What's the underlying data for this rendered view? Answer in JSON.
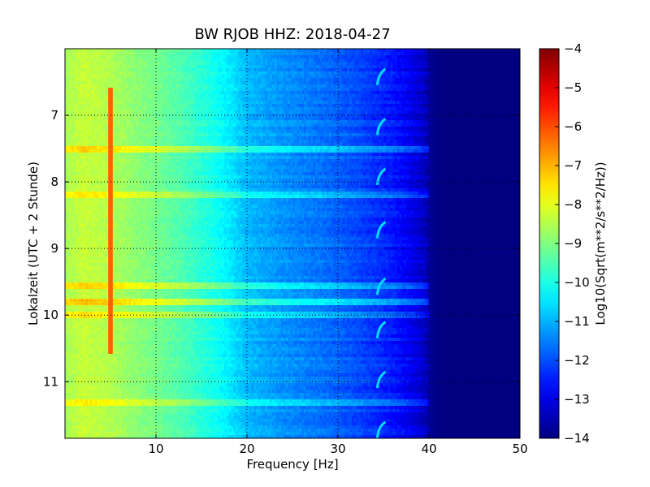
{
  "chart_data": {
    "type": "heatmap",
    "title": "BW RJOB HHZ: 2018-04-27",
    "xlabel": "Frequency [Hz]",
    "ylabel": "Lokalzeit (UTC + 2 Stunde)",
    "xlim": [
      0,
      50
    ],
    "ylim": [
      11.85,
      6.0
    ],
    "x_ticks": [
      10,
      20,
      30,
      40,
      50
    ],
    "x_tick_labels": [
      "10",
      "20",
      "30",
      "40",
      "50"
    ],
    "y_ticks": [
      7,
      8,
      9,
      10,
      11
    ],
    "y_tick_labels": [
      "7",
      "8",
      "9",
      "10",
      "11"
    ],
    "y_axis_inverted": true,
    "grid": true,
    "colormap": "jet",
    "colorbar": {
      "label": "Log10(Sqrt(m**2/s**2/Hz))",
      "range": [
        -14,
        -4
      ],
      "ticks": [
        -4,
        -5,
        -6,
        -7,
        -8,
        -9,
        -10,
        -11,
        -12,
        -13,
        -14
      ],
      "tick_labels": [
        "−4",
        "−5",
        "−6",
        "−7",
        "−8",
        "−9",
        "−10",
        "−11",
        "−12",
        "−13",
        "−14"
      ]
    },
    "spectral_profile": {
      "frequency_hz": [
        0,
        2,
        5,
        8,
        10,
        13,
        16,
        18,
        20,
        24,
        28,
        32,
        36,
        38,
        39.5,
        40.5,
        42,
        50
      ],
      "value": [
        -8.6,
        -8.3,
        -8.5,
        -8.9,
        -9.1,
        -9.5,
        -10.0,
        -10.4,
        -10.9,
        -11.3,
        -11.6,
        -12.0,
        -12.5,
        -12.9,
        -13.3,
        -13.9,
        -14.0,
        -14.0
      ]
    },
    "features": [
      {
        "kind": "line",
        "frequency_hz": 5,
        "from_hour": 6.6,
        "to_hour": 10.6,
        "value": -6.2
      },
      {
        "kind": "band",
        "hour": 7.5,
        "value_boost": 1.0
      },
      {
        "kind": "band",
        "hour": 8.2,
        "value_boost": 0.8
      },
      {
        "kind": "band",
        "hour": 9.55,
        "value_boost": 1.0
      },
      {
        "kind": "band",
        "hour": 9.8,
        "value_boost": 1.2
      },
      {
        "kind": "band",
        "hour": 10.0,
        "value_boost": 0.9
      },
      {
        "kind": "band",
        "hour": 11.3,
        "value_boost": 0.7
      },
      {
        "kind": "arc",
        "frequency_hz": 34.5,
        "hours": [
          6.4,
          7.15,
          7.9,
          8.7,
          9.55,
          10.2,
          10.95,
          11.7
        ]
      }
    ]
  }
}
